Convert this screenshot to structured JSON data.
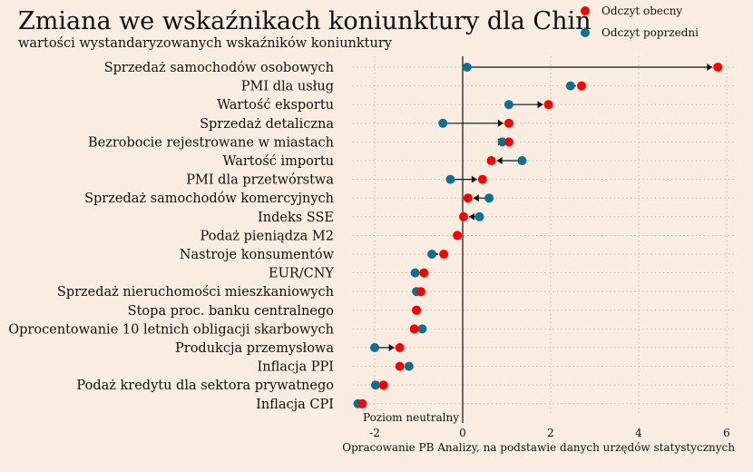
{
  "chart_data": {
    "type": "scatter",
    "title": "Zmiana we wskaźnikach koniunktury dla Chin",
    "subtitle": "wartości wystandaryzowanych wskaźników koniunktury",
    "source": "Opracowanie PB Analizy, na podstawie danych urzędów statystycznych",
    "neutral_label": "Poziom neutralny",
    "xlim": [
      -2.5,
      6.2
    ],
    "xticks": [
      "-2",
      "0",
      "2",
      "4",
      "6"
    ],
    "xtick_values": [
      -2,
      0,
      2,
      4,
      6
    ],
    "grid": true,
    "legend_position": "top-right",
    "categories": [
      "Sprzedaż samochodów osobowych",
      "PMI dla usług",
      "Wartość eksportu",
      "Sprzedaż detaliczna",
      "Bezrobocie rejestrowane w miastach",
      "Wartość importu",
      "PMI dla przetwórstwa",
      "Sprzedaż samochodów komercyjnych",
      "Indeks SSE",
      "Podaż pieniądza M2",
      "Nastroje konsumentów",
      "EUR/CNY",
      "Sprzedaż nieruchomości mieszkaniowych",
      "Stopa proc. banku centralnego",
      "Oprocentowanie 10 letnich obligacji skarbowych",
      "Produkcja przemysłowa",
      "Inflacja PPI",
      "Podaż kredytu dla sektora prywatnego",
      "Inflacja CPI"
    ],
    "series": [
      {
        "name": "Odczyt obecny",
        "color": "#ff0000",
        "values": [
          5.8,
          2.7,
          1.95,
          1.05,
          1.05,
          0.65,
          0.45,
          0.12,
          0.02,
          -0.12,
          -0.43,
          -0.88,
          -0.95,
          -1.05,
          -1.1,
          -1.43,
          -1.43,
          -1.8,
          -2.28
        ]
      },
      {
        "name": "Odczyt poprzedni",
        "color": "#0b7194",
        "values": [
          0.1,
          2.45,
          1.05,
          -0.45,
          0.9,
          1.35,
          -0.28,
          0.6,
          0.38,
          -0.12,
          -0.7,
          -1.08,
          -1.05,
          -1.05,
          -0.92,
          -2.0,
          -1.22,
          -1.98,
          -2.38
        ]
      }
    ]
  }
}
